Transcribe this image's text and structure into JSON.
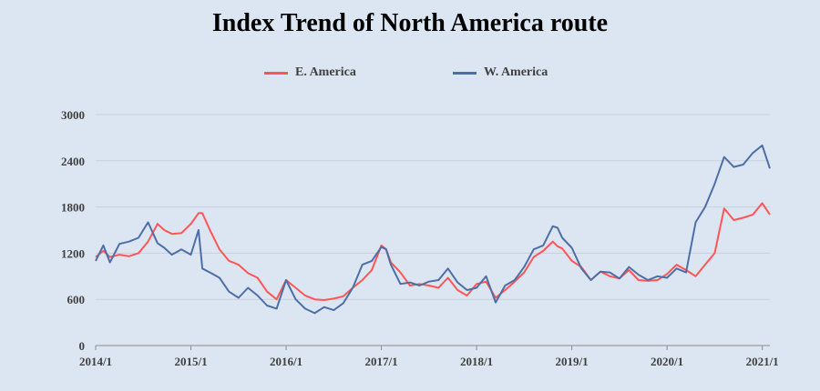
{
  "chart_data": {
    "type": "line",
    "title": "Index Trend of North America route",
    "xlabel": "",
    "ylabel": "",
    "ylim": [
      0,
      3000
    ],
    "yticks": [
      0,
      600,
      1200,
      1800,
      2400,
      3000
    ],
    "xticks": [
      "2014/1",
      "2015/1",
      "2016/1",
      "2017/1",
      "2018/1",
      "2019/1",
      "2020/1",
      "2021/1"
    ],
    "xlim": [
      2014.0,
      2021.08
    ],
    "grid": true,
    "legend": "top-center",
    "series": [
      {
        "name": "E. America",
        "color": "#ff5555",
        "x": [
          2014.0,
          2014.08,
          2014.15,
          2014.25,
          2014.35,
          2014.45,
          2014.55,
          2014.65,
          2014.72,
          2014.8,
          2014.9,
          2015.0,
          2015.08,
          2015.12,
          2015.2,
          2015.3,
          2015.4,
          2015.5,
          2015.6,
          2015.7,
          2015.8,
          2015.9,
          2016.0,
          2016.1,
          2016.2,
          2016.3,
          2016.4,
          2016.5,
          2016.6,
          2016.7,
          2016.8,
          2016.9,
          2017.0,
          2017.05,
          2017.1,
          2017.2,
          2017.3,
          2017.4,
          2017.5,
          2017.6,
          2017.7,
          2017.8,
          2017.9,
          2018.0,
          2018.1,
          2018.2,
          2018.3,
          2018.4,
          2018.5,
          2018.6,
          2018.7,
          2018.8,
          2018.85,
          2018.9,
          2019.0,
          2019.1,
          2019.2,
          2019.3,
          2019.4,
          2019.5,
          2019.6,
          2019.7,
          2019.8,
          2019.9,
          2020.0,
          2020.1,
          2020.2,
          2020.3,
          2020.4,
          2020.5,
          2020.6,
          2020.7,
          2020.8,
          2020.9,
          2021.0,
          2021.08
        ],
        "values": [
          1150,
          1230,
          1150,
          1180,
          1160,
          1200,
          1350,
          1580,
          1500,
          1450,
          1460,
          1580,
          1720,
          1720,
          1500,
          1250,
          1100,
          1050,
          940,
          880,
          700,
          600,
          850,
          750,
          650,
          600,
          590,
          610,
          640,
          750,
          850,
          980,
          1300,
          1250,
          1080,
          950,
          780,
          800,
          780,
          750,
          880,
          720,
          650,
          800,
          830,
          620,
          720,
          830,
          950,
          1150,
          1230,
          1350,
          1290,
          1260,
          1100,
          1020,
          850,
          960,
          900,
          870,
          980,
          850,
          840,
          850,
          930,
          1050,
          980,
          900,
          1050,
          1200,
          1780,
          1630,
          1660,
          1700,
          1850,
          1700
        ]
      },
      {
        "name": "W. America",
        "color": "#4d6fa5",
        "x": [
          2014.0,
          2014.08,
          2014.15,
          2014.25,
          2014.35,
          2014.45,
          2014.55,
          2014.65,
          2014.72,
          2014.8,
          2014.9,
          2015.0,
          2015.08,
          2015.12,
          2015.2,
          2015.3,
          2015.4,
          2015.5,
          2015.6,
          2015.7,
          2015.8,
          2015.9,
          2016.0,
          2016.1,
          2016.2,
          2016.3,
          2016.4,
          2016.5,
          2016.6,
          2016.7,
          2016.8,
          2016.9,
          2017.0,
          2017.05,
          2017.1,
          2017.2,
          2017.3,
          2017.4,
          2017.5,
          2017.6,
          2017.7,
          2017.8,
          2017.9,
          2018.0,
          2018.1,
          2018.2,
          2018.3,
          2018.4,
          2018.5,
          2018.6,
          2018.7,
          2018.8,
          2018.85,
          2018.9,
          2019.0,
          2019.1,
          2019.2,
          2019.3,
          2019.4,
          2019.5,
          2019.6,
          2019.7,
          2019.8,
          2019.9,
          2020.0,
          2020.1,
          2020.2,
          2020.3,
          2020.4,
          2020.5,
          2020.6,
          2020.7,
          2020.8,
          2020.9,
          2021.0,
          2021.08
        ],
        "values": [
          1100,
          1300,
          1080,
          1320,
          1350,
          1400,
          1600,
          1330,
          1270,
          1180,
          1250,
          1180,
          1500,
          1000,
          950,
          880,
          700,
          620,
          750,
          650,
          520,
          480,
          850,
          600,
          480,
          420,
          500,
          460,
          550,
          750,
          1050,
          1100,
          1280,
          1250,
          1050,
          800,
          820,
          780,
          830,
          850,
          1000,
          820,
          720,
          750,
          900,
          560,
          780,
          850,
          1020,
          1250,
          1300,
          1550,
          1530,
          1400,
          1270,
          1000,
          850,
          960,
          950,
          870,
          1020,
          920,
          850,
          900,
          880,
          1000,
          950,
          1600,
          1800,
          2100,
          2450,
          2320,
          2350,
          2500,
          2600,
          2300
        ]
      }
    ]
  }
}
